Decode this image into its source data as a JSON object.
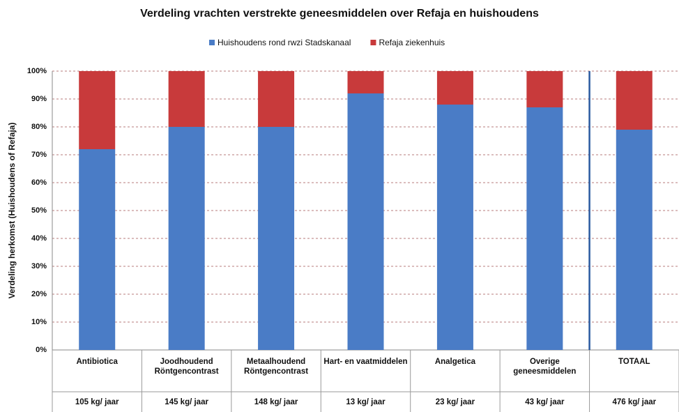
{
  "chart_data": {
    "type": "stacked_bar",
    "title": "Verdeling vrachten verstrekte geneesmiddelen over Refaja en huishoudens",
    "y_label": "Verdeling herkomst (Huishoudens of Refaja)",
    "categories": [
      "Antibiotica",
      "Joodhoudend Röntgencontrast",
      "Metaalhoudend Röntgencontrast",
      "Hart- en vaatmiddelen",
      "Analgetica",
      "Overige geneesmiddelen",
      "TOTAAL"
    ],
    "loads": [
      "105 kg/ jaar",
      "145 kg/ jaar",
      "148 kg/ jaar",
      "13 kg/ jaar",
      "23 kg/ jaar",
      "43 kg/ jaar",
      "476 kg/ jaar"
    ],
    "series": [
      {
        "name": "Huishoudens rond rwzi Stadskanaal",
        "color": "#4a7cc6",
        "values": [
          72,
          80,
          80,
          92,
          88,
          87,
          79
        ]
      },
      {
        "name": "Refaja ziekenhuis",
        "color": "#c83a3b",
        "values": [
          28,
          20,
          20,
          8,
          12,
          13,
          21
        ]
      }
    ],
    "ylim": [
      0,
      100
    ],
    "yticks": [
      {
        "value": 0,
        "label": "0%"
      },
      {
        "value": 10,
        "label": "10%"
      },
      {
        "value": 20,
        "label": "20%"
      },
      {
        "value": 30,
        "label": "30%"
      },
      {
        "value": 40,
        "label": "40%"
      },
      {
        "value": 50,
        "label": "50%"
      },
      {
        "value": 60,
        "label": "60%"
      },
      {
        "value": 70,
        "label": "70%"
      },
      {
        "value": 80,
        "label": "80%"
      },
      {
        "value": 90,
        "label": "90%"
      },
      {
        "value": 100,
        "label": "100%"
      }
    ],
    "grid": true,
    "legend": "top"
  }
}
